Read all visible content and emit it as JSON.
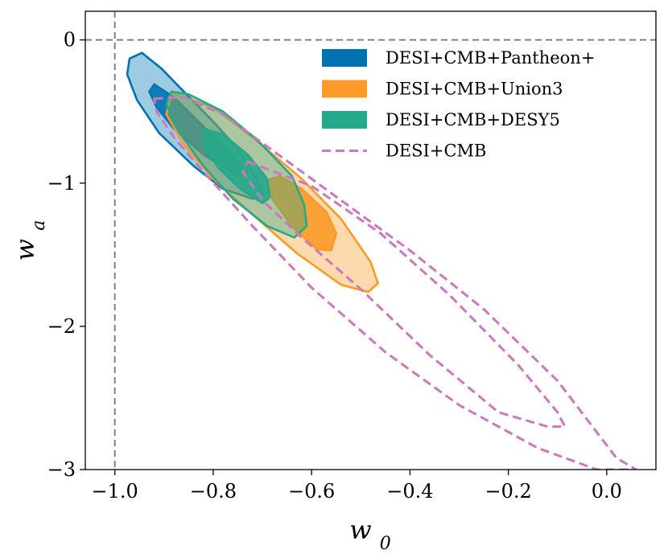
{
  "chart_data": {
    "type": "contour",
    "xlabel": "w0",
    "ylabel": "wa",
    "xlim": [
      -1.06,
      0.1
    ],
    "ylim": [
      -3.0,
      0.2
    ],
    "x_ticks": [
      {
        "v": -1.0,
        "label": "−1.0"
      },
      {
        "v": -0.8,
        "label": "−0.8"
      },
      {
        "v": -0.6,
        "label": "−0.6"
      },
      {
        "v": -0.4,
        "label": "−0.4"
      },
      {
        "v": -0.2,
        "label": "−0.2"
      },
      {
        "v": 0.0,
        "label": "0.0"
      }
    ],
    "y_ticks": [
      {
        "v": 0,
        "label": "0"
      },
      {
        "v": -1,
        "label": "−1"
      },
      {
        "v": -2,
        "label": "−2"
      },
      {
        "v": -3,
        "label": "−3"
      }
    ],
    "reference_lines": {
      "x": -1.0,
      "y": 0.0,
      "color": "#808080",
      "style": "dashed"
    },
    "grid": false,
    "legend_position": "top-right",
    "series": [
      {
        "name": "DESI+CMB+Pantheon+",
        "color": "#0173b2",
        "style": "filled",
        "contours": [
          {
            "level": "95%",
            "polygon": [
              [
                -0.945,
                -0.09
              ],
              [
                -0.905,
                -0.2
              ],
              [
                -0.86,
                -0.36
              ],
              [
                -0.8,
                -0.57
              ],
              [
                -0.75,
                -0.76
              ],
              [
                -0.71,
                -0.98
              ],
              [
                -0.7,
                -1.08
              ],
              [
                -0.72,
                -1.11
              ],
              [
                -0.78,
                -1.04
              ],
              [
                -0.84,
                -0.88
              ],
              [
                -0.91,
                -0.65
              ],
              [
                -0.955,
                -0.42
              ],
              [
                -0.975,
                -0.24
              ],
              [
                -0.97,
                -0.13
              ]
            ]
          },
          {
            "level": "68%",
            "polygon": [
              [
                -0.92,
                -0.31
              ],
              [
                -0.88,
                -0.4
              ],
              [
                -0.83,
                -0.57
              ],
              [
                -0.78,
                -0.74
              ],
              [
                -0.74,
                -0.89
              ],
              [
                -0.735,
                -0.95
              ],
              [
                -0.76,
                -0.93
              ],
              [
                -0.82,
                -0.8
              ],
              [
                -0.88,
                -0.62
              ],
              [
                -0.915,
                -0.47
              ],
              [
                -0.93,
                -0.36
              ]
            ]
          }
        ]
      },
      {
        "name": "DESI+CMB+Union3",
        "color": "#fb9a29",
        "style": "filled",
        "contours": [
          {
            "level": "95%",
            "polygon": [
              [
                -0.885,
                -0.37
              ],
              [
                -0.8,
                -0.47
              ],
              [
                -0.72,
                -0.68
              ],
              [
                -0.62,
                -0.97
              ],
              [
                -0.54,
                -1.25
              ],
              [
                -0.48,
                -1.55
              ],
              [
                -0.465,
                -1.7
              ],
              [
                -0.485,
                -1.76
              ],
              [
                -0.54,
                -1.71
              ],
              [
                -0.63,
                -1.49
              ],
              [
                -0.72,
                -1.22
              ],
              [
                -0.8,
                -0.97
              ],
              [
                -0.86,
                -0.73
              ],
              [
                -0.895,
                -0.52
              ]
            ]
          },
          {
            "level": "68%",
            "polygon": [
              [
                -0.665,
                -0.95
              ],
              [
                -0.62,
                -1.04
              ],
              [
                -0.57,
                -1.2
              ],
              [
                -0.55,
                -1.35
              ],
              [
                -0.56,
                -1.47
              ],
              [
                -0.59,
                -1.46
              ],
              [
                -0.64,
                -1.3
              ],
              [
                -0.68,
                -1.11
              ],
              [
                -0.69,
                -0.98
              ]
            ]
          }
        ]
      },
      {
        "name": "DESI+CMB+DESY5",
        "color": "#26a98a",
        "style": "filled",
        "contours": [
          {
            "level": "95%",
            "polygon": [
              [
                -0.885,
                -0.36
              ],
              [
                -0.85,
                -0.38
              ],
              [
                -0.78,
                -0.5
              ],
              [
                -0.71,
                -0.7
              ],
              [
                -0.64,
                -0.95
              ],
              [
                -0.615,
                -1.15
              ],
              [
                -0.61,
                -1.3
              ],
              [
                -0.635,
                -1.38
              ],
              [
                -0.69,
                -1.3
              ],
              [
                -0.76,
                -1.11
              ],
              [
                -0.82,
                -0.88
              ],
              [
                -0.87,
                -0.64
              ],
              [
                -0.895,
                -0.45
              ]
            ]
          },
          {
            "level": "68%",
            "polygon": [
              [
                -0.82,
                -0.62
              ],
              [
                -0.78,
                -0.66
              ],
              [
                -0.73,
                -0.8
              ],
              [
                -0.69,
                -0.97
              ],
              [
                -0.685,
                -1.1
              ],
              [
                -0.7,
                -1.14
              ],
              [
                -0.745,
                -1.04
              ],
              [
                -0.79,
                -0.89
              ],
              [
                -0.82,
                -0.74
              ]
            ]
          }
        ]
      },
      {
        "name": "DESI+CMB",
        "color": "#cc78bc",
        "style": "dashed",
        "contours": [
          {
            "level": "95%",
            "polygon": [
              [
                -0.92,
                -0.41
              ],
              [
                -0.86,
                -0.4
              ],
              [
                -0.78,
                -0.52
              ],
              [
                -0.66,
                -0.82
              ],
              [
                -0.54,
                -1.12
              ],
              [
                -0.4,
                -1.47
              ],
              [
                -0.25,
                -1.88
              ],
              [
                -0.1,
                -2.38
              ],
              [
                0.02,
                -2.92
              ],
              [
                0.06,
                -3.0
              ],
              [
                -0.02,
                -3.0
              ],
              [
                -0.14,
                -2.85
              ],
              [
                -0.3,
                -2.55
              ],
              [
                -0.45,
                -2.18
              ],
              [
                -0.6,
                -1.73
              ],
              [
                -0.72,
                -1.3
              ],
              [
                -0.82,
                -0.92
              ],
              [
                -0.88,
                -0.68
              ],
              [
                -0.915,
                -0.5
              ]
            ]
          },
          {
            "level": "68%",
            "polygon": [
              [
                -0.73,
                -0.85
              ],
              [
                -0.6,
                -1.02
              ],
              [
                -0.46,
                -1.35
              ],
              [
                -0.32,
                -1.78
              ],
              [
                -0.18,
                -2.27
              ],
              [
                -0.1,
                -2.6
              ],
              [
                -0.085,
                -2.7
              ],
              [
                -0.12,
                -2.7
              ],
              [
                -0.22,
                -2.6
              ],
              [
                -0.36,
                -2.2
              ],
              [
                -0.5,
                -1.74
              ],
              [
                -0.62,
                -1.38
              ],
              [
                -0.7,
                -1.12
              ],
              [
                -0.74,
                -0.92
              ]
            ]
          }
        ]
      }
    ]
  }
}
